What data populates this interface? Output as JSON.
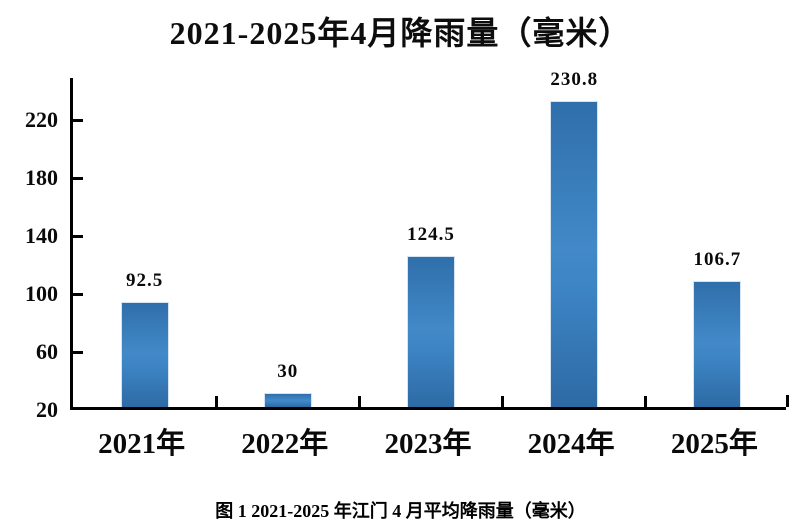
{
  "title": "2021-2025年4月降雨量（毫米）",
  "caption": "图 1 2021-2025 年江门 4 月平均降雨量（毫米）",
  "chart_data": {
    "type": "bar",
    "title": "2021-2025年4月降雨量（毫米）",
    "categories": [
      "2021年",
      "2022年",
      "2023年",
      "2024年",
      "2025年"
    ],
    "values": [
      92.5,
      30,
      124.5,
      230.8,
      106.7
    ],
    "value_labels": [
      "92.5",
      "30",
      "124.5",
      "230.8",
      "106.7"
    ],
    "xlabel": "",
    "ylabel": "",
    "ylim": [
      20,
      249
    ],
    "yticks": [
      20,
      60,
      100,
      140,
      180,
      220
    ],
    "grid": false,
    "legend": "none",
    "data_labels_position": "above-bar",
    "bar_color_top": "#2f6fab",
    "bar_color_mid": "#4289c8",
    "bar_color_bottom": "#2d6aa4",
    "bar_outline": "#d6e3f0",
    "axis_color": "#000000",
    "text_color": "#0a0a0a"
  }
}
